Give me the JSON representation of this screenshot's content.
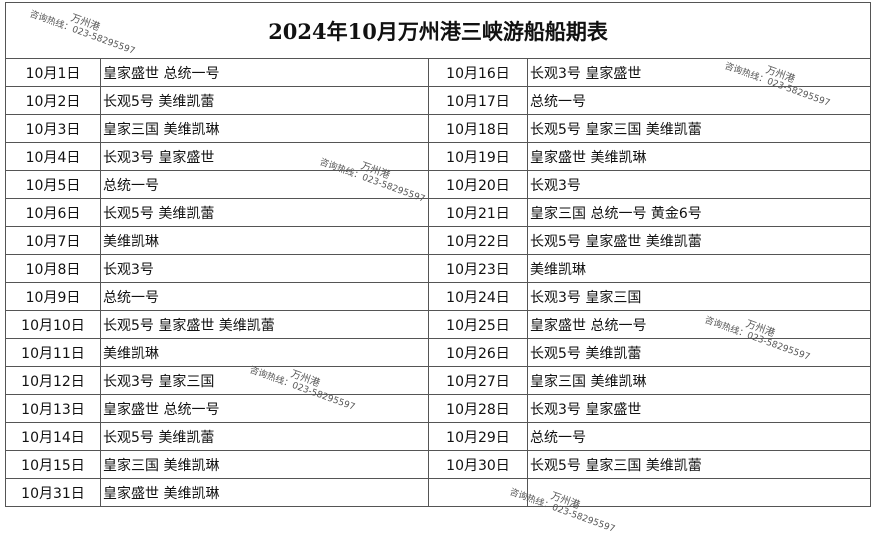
{
  "title": "2024年10月万州港三峡游船船期表",
  "watermark": {
    "port": "万州港",
    "hotline": "咨询热线：023-58295597"
  },
  "left": [
    {
      "date": "10月1日",
      "ships": "皇家盛世 总统一号"
    },
    {
      "date": "10月2日",
      "ships": "长观5号 美维凯蕾"
    },
    {
      "date": "10月3日",
      "ships": "皇家三国 美维凯琳"
    },
    {
      "date": "10月4日",
      "ships": "长观3号 皇家盛世"
    },
    {
      "date": "10月5日",
      "ships": "总统一号"
    },
    {
      "date": "10月6日",
      "ships": "长观5号  美维凯蕾"
    },
    {
      "date": "10月7日",
      "ships": " 美维凯琳"
    },
    {
      "date": "10月8日",
      "ships": "长观3号"
    },
    {
      "date": "10月9日",
      "ships": "总统一号"
    },
    {
      "date": "10月10日",
      "ships": "长观5号 皇家盛世 美维凯蕾"
    },
    {
      "date": "10月11日",
      "ships": "美维凯琳"
    },
    {
      "date": "10月12日",
      "ships": "长观3号 皇家三国"
    },
    {
      "date": "10月13日",
      "ships": "皇家盛世 总统一号"
    },
    {
      "date": "10月14日",
      "ships": "长观5号 美维凯蕾"
    },
    {
      "date": "10月15日",
      "ships": "皇家三国 美维凯琳"
    },
    {
      "date": "10月31日",
      "ships": "皇家盛世 美维凯琳"
    }
  ],
  "right": [
    {
      "date": "10月16日",
      "ships": "长观3号 皇家盛世"
    },
    {
      "date": "10月17日",
      "ships": "总统一号"
    },
    {
      "date": "10月18日",
      "ships": "长观5号 皇家三国 美维凯蕾"
    },
    {
      "date": "10月19日",
      "ships": "皇家盛世 美维凯琳"
    },
    {
      "date": "10月20日",
      "ships": "长观3号"
    },
    {
      "date": "10月21日",
      "ships": "皇家三国 总统一号 黄金6号"
    },
    {
      "date": "10月22日",
      "ships": "长观5号 皇家盛世 美维凯蕾"
    },
    {
      "date": "10月23日",
      "ships": "美维凯琳"
    },
    {
      "date": "10月24日",
      "ships": "长观3号 皇家三国"
    },
    {
      "date": "10月25日",
      "ships": "皇家盛世 总统一号"
    },
    {
      "date": "10月26日",
      "ships": "长观5号 美维凯蕾"
    },
    {
      "date": "10月27日",
      "ships": "皇家三国 美维凯琳"
    },
    {
      "date": "10月28日",
      "ships": "长观3号 皇家盛世"
    },
    {
      "date": "10月29日",
      "ships": "总统一号"
    },
    {
      "date": "10月30日",
      "ships": "长观5号 皇家三国 美维凯蕾"
    },
    {
      "date": "",
      "ships": ""
    }
  ]
}
